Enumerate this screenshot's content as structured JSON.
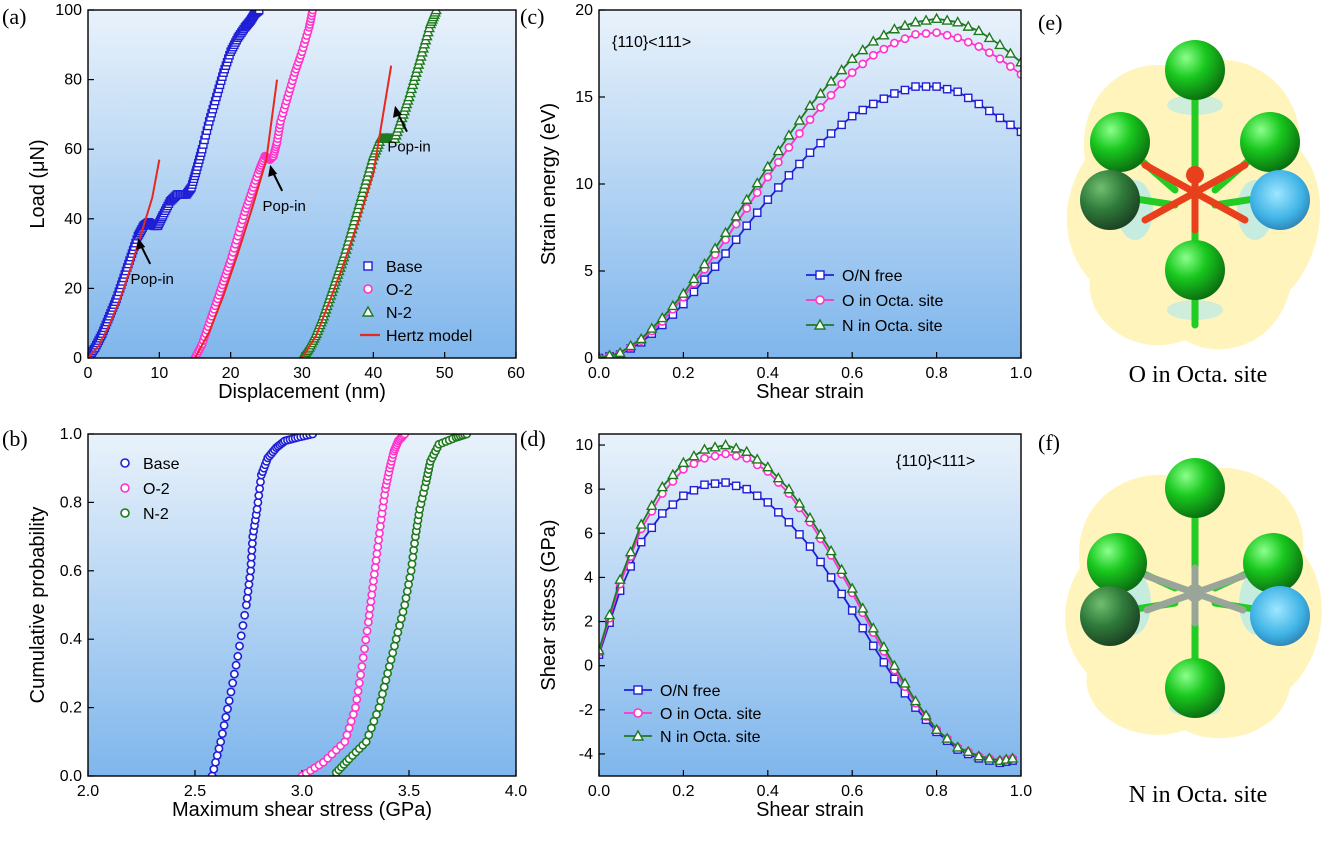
{
  "panel_labels": [
    "(a)",
    "(b)",
    "(c)",
    "(d)",
    "(e)",
    "(f)"
  ],
  "colors": {
    "base": "#1f1fd6",
    "o": "#ff33cc",
    "n": "#1e7a1e",
    "hertz": "#e8281e",
    "bg_top": "#e9f2fb",
    "bg_bottom": "#7fb6ec"
  },
  "images": {
    "e": {
      "caption": "O in Octa. site",
      "center_color": "#e8401c"
    },
    "f": {
      "caption": "N in Octa. site",
      "center_color": "#9aa59a"
    }
  },
  "chart_data": [
    {
      "id": "a",
      "type": "scatter",
      "xlabel": "Displacement (nm)",
      "ylabel": "Load (μN)",
      "xlim": [
        0,
        60
      ],
      "ylim": [
        0,
        100
      ],
      "xticks": [
        0,
        10,
        20,
        30,
        40,
        50,
        60
      ],
      "yticks": [
        0,
        20,
        40,
        60,
        80,
        100
      ],
      "legend_position": "bottom-right",
      "series": [
        {
          "name": "Base",
          "color": "#1f1fd6",
          "marker": "square",
          "x": [
            0,
            1,
            2,
            3,
            4,
            5,
            6,
            7,
            7.8,
            8.5,
            9.2,
            9.8,
            10.5,
            11.5,
            12.5,
            13.8,
            14.5,
            15.2,
            16,
            17,
            18,
            19,
            20,
            21,
            22,
            22.8,
            23.4,
            24
          ],
          "y": [
            0,
            3,
            7,
            12,
            17,
            23,
            29,
            35,
            38,
            39,
            38,
            38,
            41,
            45,
            47,
            47,
            49,
            54,
            60,
            68,
            75,
            82,
            88,
            92,
            95,
            97,
            99,
            100
          ]
        },
        {
          "name": "O-2",
          "color": "#ff33cc",
          "marker": "circle",
          "x": [
            15,
            16,
            17,
            18,
            19,
            20,
            21,
            22,
            23,
            24,
            24.8,
            25.5,
            26,
            26.5,
            27,
            28,
            29,
            30,
            31,
            31.5
          ],
          "y": [
            0,
            4,
            10,
            16,
            22,
            28,
            35,
            42,
            48,
            54,
            58,
            57,
            58,
            62,
            68,
            75,
            82,
            88,
            95,
            100
          ]
        },
        {
          "name": "N-2",
          "color": "#1e7a1e",
          "marker": "triangle",
          "x": [
            30,
            31,
            32,
            33,
            34,
            35,
            36,
            37,
            38,
            39,
            40,
            41,
            42,
            43,
            44,
            45,
            46,
            47,
            48,
            48.8
          ],
          "y": [
            0,
            3,
            7,
            12,
            18,
            24,
            30,
            37,
            44,
            51,
            58,
            63,
            63,
            63,
            69,
            75,
            82,
            89,
            96,
            100
          ]
        },
        {
          "name": "Hertz model",
          "color": "#e8281e",
          "marker": "line",
          "fits": [
            {
              "x": [
                0,
                1.5,
                3,
                4.5,
                6,
                7.5,
                9,
                10
              ],
              "y": [
                0,
                3.5,
                9.5,
                17,
                26,
                36,
                46,
                57
              ]
            },
            {
              "x": [
                15,
                17,
                19,
                21,
                23,
                25,
                26.5
              ],
              "y": [
                0,
                7.5,
                18,
                30,
                43,
                57,
                80
              ]
            },
            {
              "x": [
                30,
                32,
                34,
                36,
                38,
                40,
                42.5
              ],
              "y": [
                0,
                6.5,
                17,
                28,
                40,
                53,
                84
              ]
            }
          ]
        }
      ],
      "annotations": [
        {
          "text": "Pop-in",
          "x": 9,
          "y": 23
        },
        {
          "text": "Pop-in",
          "x": 27.5,
          "y": 44
        },
        {
          "text": "Pop-in",
          "x": 45,
          "y": 61
        }
      ]
    },
    {
      "id": "b",
      "type": "scatter",
      "xlabel": "Maximum shear stress (GPa)",
      "ylabel": "Cumulative probability",
      "xlim": [
        2.0,
        4.0
      ],
      "ylim": [
        0,
        1.0
      ],
      "xticks": [
        2.0,
        2.5,
        3.0,
        3.5,
        4.0
      ],
      "yticks": [
        0.0,
        0.2,
        0.4,
        0.6,
        0.8,
        1.0
      ],
      "legend_position": "top-left",
      "series": [
        {
          "name": "Base",
          "color": "#1f1fd6",
          "marker": "circle",
          "x": [
            2.58,
            2.62,
            2.66,
            2.7,
            2.74,
            2.76,
            2.77,
            2.79,
            2.81,
            2.84,
            2.88,
            2.92,
            2.98,
            3.05
          ],
          "y": [
            0.0,
            0.1,
            0.22,
            0.35,
            0.5,
            0.6,
            0.7,
            0.78,
            0.88,
            0.93,
            0.96,
            0.98,
            0.99,
            1.0
          ]
        },
        {
          "name": "O-2",
          "color": "#ff33cc",
          "marker": "circle",
          "x": [
            3.0,
            3.1,
            3.2,
            3.25,
            3.28,
            3.31,
            3.33,
            3.35,
            3.37,
            3.39,
            3.41,
            3.43,
            3.45,
            3.48
          ],
          "y": [
            0.0,
            0.04,
            0.1,
            0.2,
            0.32,
            0.45,
            0.55,
            0.65,
            0.75,
            0.84,
            0.9,
            0.95,
            0.98,
            1.0
          ]
        },
        {
          "name": "N-2",
          "color": "#1e7a1e",
          "marker": "circle",
          "x": [
            3.16,
            3.22,
            3.3,
            3.36,
            3.4,
            3.44,
            3.48,
            3.51,
            3.53,
            3.55,
            3.58,
            3.6,
            3.64,
            3.72,
            3.77
          ],
          "y": [
            0.01,
            0.05,
            0.1,
            0.2,
            0.3,
            0.4,
            0.5,
            0.6,
            0.7,
            0.78,
            0.86,
            0.92,
            0.97,
            0.99,
            1.0
          ]
        }
      ]
    },
    {
      "id": "c",
      "type": "line",
      "xlabel": "Shear strain",
      "ylabel": "Strain energy (eV)",
      "xlim": [
        0.0,
        1.0
      ],
      "ylim": [
        0,
        20
      ],
      "xticks": [
        0.0,
        0.2,
        0.4,
        0.6,
        0.8,
        1.0
      ],
      "yticks": [
        0,
        5,
        10,
        15,
        20
      ],
      "annotation": "{110}<111>",
      "legend_position": "bottom-right",
      "x": [
        0.0,
        0.05,
        0.1,
        0.15,
        0.2,
        0.25,
        0.3,
        0.35,
        0.4,
        0.45,
        0.5,
        0.55,
        0.6,
        0.65,
        0.7,
        0.75,
        0.8,
        0.85,
        0.9,
        0.95,
        1.0
      ],
      "series": [
        {
          "name": "O/N free",
          "color": "#1f1fd6",
          "marker": "square",
          "values": [
            0,
            0.2,
            0.9,
            1.9,
            3.1,
            4.5,
            6.0,
            7.6,
            9.1,
            10.5,
            11.8,
            12.9,
            13.9,
            14.6,
            15.2,
            15.6,
            15.6,
            15.3,
            14.6,
            13.8,
            13.0
          ]
        },
        {
          "name": "O in Octa. site",
          "color": "#ff33cc",
          "marker": "circle",
          "values": [
            0,
            0.25,
            1.0,
            2.1,
            3.5,
            5.1,
            6.8,
            8.6,
            10.4,
            12.1,
            13.7,
            15.1,
            16.4,
            17.4,
            18.1,
            18.6,
            18.7,
            18.4,
            17.9,
            17.2,
            16.3
          ]
        },
        {
          "name": "N in Octa. site",
          "color": "#1e7a1e",
          "marker": "triangle",
          "values": [
            0,
            0.3,
            1.1,
            2.3,
            3.7,
            5.4,
            7.2,
            9.1,
            11.0,
            12.8,
            14.5,
            15.9,
            17.2,
            18.2,
            18.9,
            19.3,
            19.5,
            19.3,
            18.8,
            18.0,
            17.0
          ]
        }
      ]
    },
    {
      "id": "d",
      "type": "line",
      "xlabel": "Shear strain",
      "ylabel": "Shear stress (GPa)",
      "xlim": [
        0.0,
        1.0
      ],
      "ylim": [
        -5,
        10.5
      ],
      "xticks": [
        0.0,
        0.2,
        0.4,
        0.6,
        0.8,
        1.0
      ],
      "yticks": [
        -4,
        -2,
        0,
        2,
        4,
        6,
        8,
        10
      ],
      "annotation": "{110}<111>",
      "legend_position": "bottom-left",
      "x": [
        0.0,
        0.05,
        0.1,
        0.15,
        0.2,
        0.25,
        0.3,
        0.35,
        0.4,
        0.45,
        0.5,
        0.55,
        0.6,
        0.65,
        0.7,
        0.75,
        0.8,
        0.85,
        0.9,
        0.95,
        0.98
      ],
      "series": [
        {
          "name": "O/N free",
          "color": "#1f1fd6",
          "marker": "square",
          "values": [
            0.5,
            3.4,
            5.6,
            6.9,
            7.7,
            8.2,
            8.3,
            8.0,
            7.4,
            6.5,
            5.4,
            4.0,
            2.5,
            0.9,
            -0.6,
            -1.9,
            -3.0,
            -3.8,
            -4.2,
            -4.4,
            -4.3
          ]
        },
        {
          "name": "O in Octa. site",
          "color": "#ff33cc",
          "marker": "circle",
          "values": [
            0.6,
            3.7,
            6.2,
            7.8,
            8.9,
            9.4,
            9.6,
            9.4,
            8.8,
            7.8,
            6.5,
            5.0,
            3.3,
            1.5,
            -0.2,
            -1.7,
            -2.9,
            -3.7,
            -4.1,
            -4.3,
            -4.2
          ]
        },
        {
          "name": "N in Octa. site",
          "color": "#1e7a1e",
          "marker": "triangle",
          "values": [
            0.7,
            3.9,
            6.4,
            8.1,
            9.2,
            9.8,
            10.0,
            9.7,
            9.0,
            8.0,
            6.7,
            5.2,
            3.5,
            1.7,
            0.0,
            -1.6,
            -2.9,
            -3.7,
            -4.1,
            -4.3,
            -4.2
          ]
        }
      ]
    }
  ]
}
